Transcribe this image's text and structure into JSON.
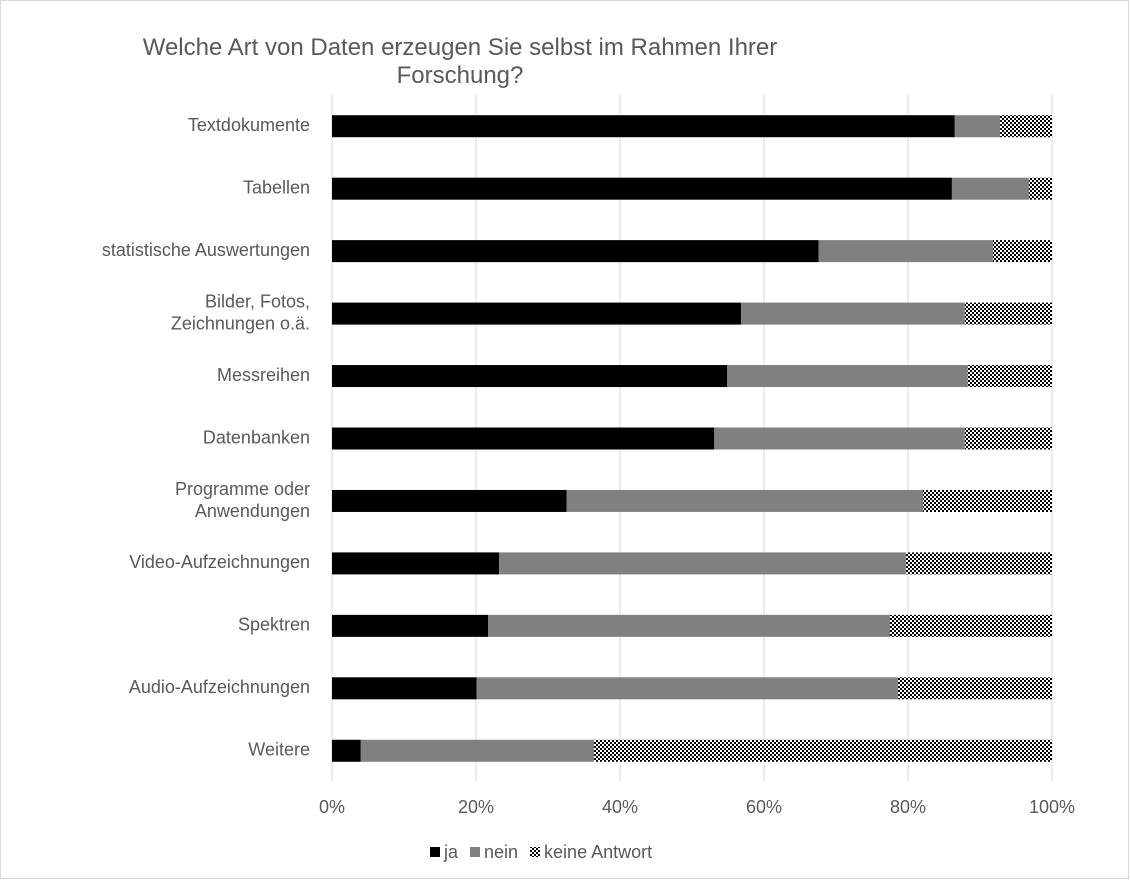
{
  "chart_data": {
    "type": "bar",
    "stacked": true,
    "orientation": "horizontal",
    "title": "Welche Art von Daten erzeugen Sie selbst im Rahmen Ihrer Forschung?",
    "categories": [
      "Textdokumente",
      "Tabellen",
      "statistische Auswertungen",
      "Bilder, Fotos,\nZeichnungen o.ä.",
      "Messreihen",
      "Datenbanken",
      "Programme oder\nAnwendungen",
      "Video-Aufzeichnungen",
      "Spektren",
      "Audio-Aufzeichnungen",
      "Weitere"
    ],
    "series": [
      {
        "name": "ja",
        "color": "#000000",
        "values": [
          86.5,
          86.1,
          67.6,
          56.8,
          54.9,
          53.1,
          32.6,
          23.2,
          21.7,
          20.1,
          4.0
        ]
      },
      {
        "name": "nein",
        "color": "#808080",
        "values": [
          6.3,
          10.7,
          24.2,
          31.1,
          33.4,
          34.8,
          49.5,
          56.5,
          55.8,
          58.5,
          32.4
        ]
      },
      {
        "name": "keine Antwort",
        "color": "#000000",
        "pattern": "checker",
        "values": [
          7.2,
          3.2,
          8.2,
          12.1,
          11.7,
          12.1,
          17.9,
          20.3,
          22.5,
          21.4,
          63.6
        ]
      }
    ],
    "xlim": [
      0,
      100
    ],
    "xticks": [
      {
        "value": 0,
        "label": "0%"
      },
      {
        "value": 20,
        "label": "20%"
      },
      {
        "value": 40,
        "label": "40%"
      },
      {
        "value": 60,
        "label": "60%"
      },
      {
        "value": 80,
        "label": "80%"
      },
      {
        "value": 100,
        "label": "100%"
      }
    ],
    "grid": true,
    "legend": "bottom"
  }
}
